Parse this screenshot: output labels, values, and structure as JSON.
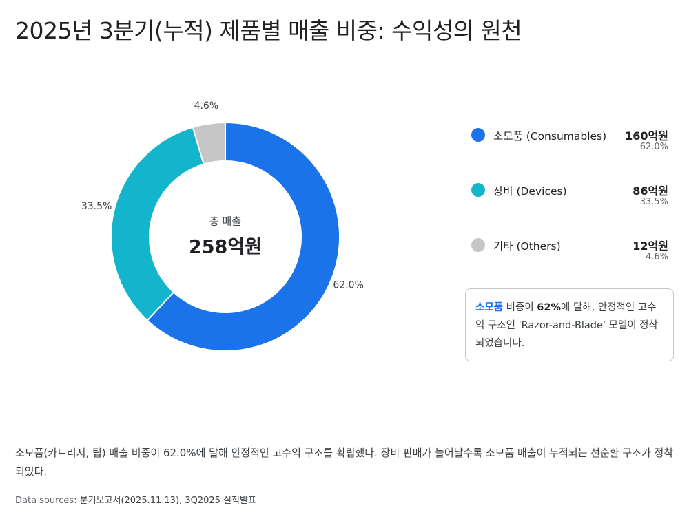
{
  "title": "2025년 3분기(누적) 제품별 매출 비중: 수익성의 원천",
  "chart_data": {
    "type": "pie",
    "donut": true,
    "categories": [
      "소모품 (Consumables)",
      "장비 (Devices)",
      "기타 (Others)"
    ],
    "values": [
      62.0,
      33.5,
      4.6
    ],
    "value_labels": [
      "62.0%",
      "33.5%",
      "4.6%"
    ],
    "colors": [
      "#1a73e8",
      "#12b5cb",
      "#c6c6c6"
    ],
    "amount_labels": [
      "160억원",
      "86억원",
      "12억원"
    ],
    "center_label": "총 매출",
    "center_value": "258억원"
  },
  "callout": {
    "highlight": "소모품",
    "text1": " 비중이 ",
    "emphasis": "62%",
    "text2": "에 달해, 안정적인 고수익 구조인 'Razor-and-Blade' 모델이 정착되었습니다."
  },
  "footer": {
    "summary": "소모품(카트리지, 팁) 매출 비중이 62.0%에 달해 안정적인 고수익 구조를 확립했다. 장비 판매가 늘어날수록 소모품 매출이 누적되는 선순환 구조가 정착되었다.",
    "sources_label": "Data sources:",
    "sources": [
      "분기보고서(2025.11.13)",
      "3Q2025 실적발표"
    ],
    "separator": ","
  }
}
